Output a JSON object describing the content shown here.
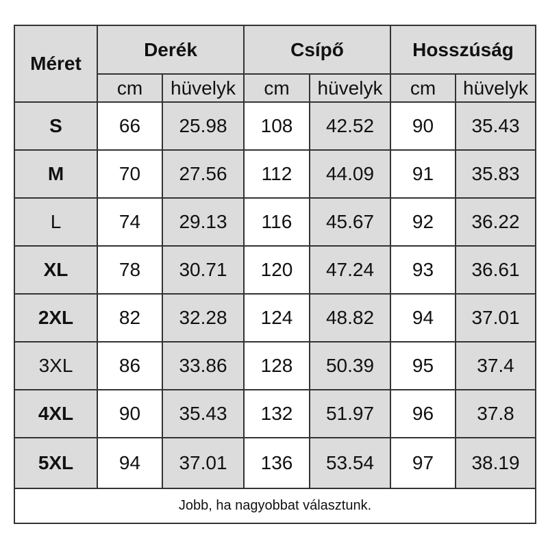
{
  "header": {
    "size_label": "Méret",
    "groups": [
      "Derék",
      "Csípő",
      "Hosszúság"
    ],
    "units": [
      "cm",
      "hüvelyk",
      "cm",
      "hüvelyk",
      "cm",
      "hüvelyk"
    ]
  },
  "rows": [
    {
      "size": "S",
      "bold": true,
      "values": [
        "66",
        "25.98",
        "108",
        "42.52",
        "90",
        "35.43"
      ]
    },
    {
      "size": "M",
      "bold": true,
      "values": [
        "70",
        "27.56",
        "112",
        "44.09",
        "91",
        "35.83"
      ]
    },
    {
      "size": "L",
      "bold": false,
      "values": [
        "74",
        "29.13",
        "116",
        "45.67",
        "92",
        "36.22"
      ]
    },
    {
      "size": "XL",
      "bold": true,
      "values": [
        "78",
        "30.71",
        "120",
        "47.24",
        "93",
        "36.61"
      ]
    },
    {
      "size": "2XL",
      "bold": true,
      "values": [
        "82",
        "32.28",
        "124",
        "48.82",
        "94",
        "37.01"
      ]
    },
    {
      "size": "3XL",
      "bold": false,
      "values": [
        "86",
        "33.86",
        "128",
        "50.39",
        "95",
        "37.4"
      ]
    },
    {
      "size": "4XL",
      "bold": true,
      "values": [
        "90",
        "35.43",
        "132",
        "51.97",
        "96",
        "37.8"
      ]
    },
    {
      "size": "5XL",
      "bold": true,
      "values": [
        "94",
        "37.01",
        "136",
        "53.54",
        "97",
        "38.19"
      ]
    }
  ],
  "footer": "Jobb, ha nagyobbat választunk.",
  "colors": {
    "header_bg": "#dcdcdc",
    "border": "#333333",
    "cell_bg": "#ffffff"
  }
}
